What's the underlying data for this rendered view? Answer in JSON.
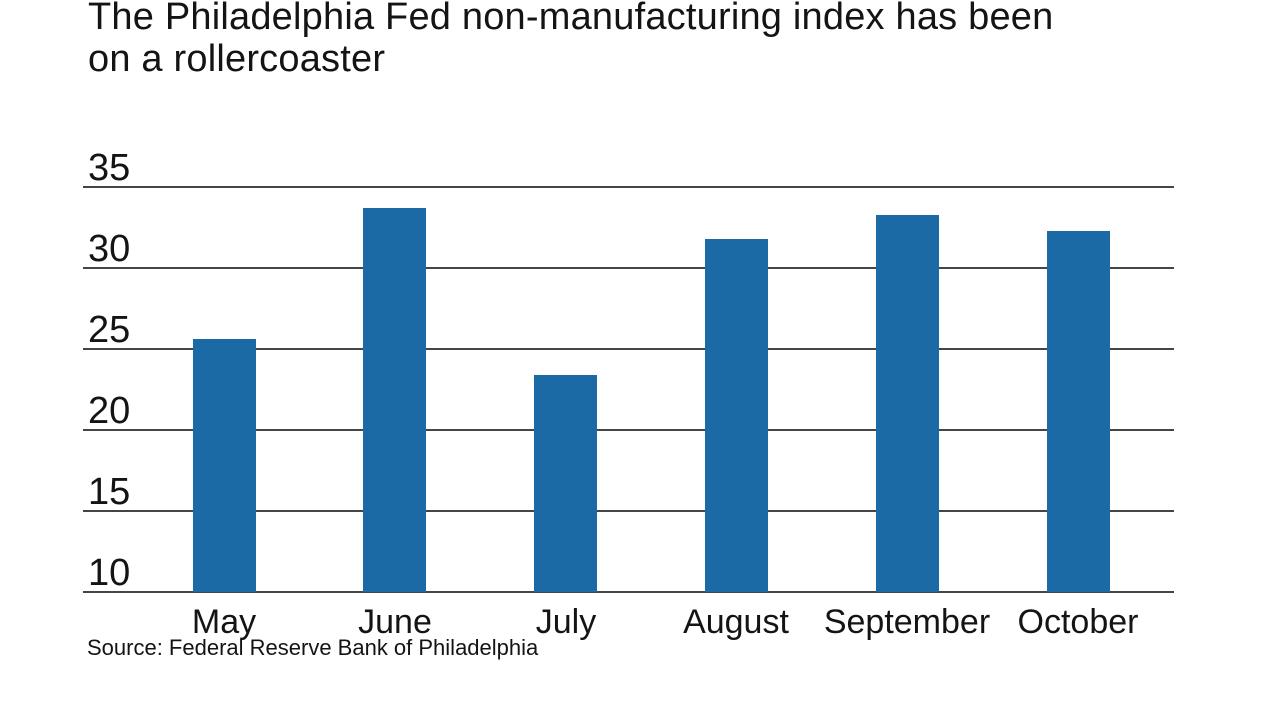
{
  "title_lines": [
    "The Philadelphia Fed non-manufacturing index has been",
    "on a rollercoaster"
  ],
  "source": "Source: Federal Reserve Bank of Philadelphia",
  "colors": {
    "bar": "#1c6aa5",
    "gridline": "#454545",
    "text": "#141414"
  },
  "chart_data": {
    "type": "bar",
    "title": "The Philadelphia Fed non-manufacturing index has been on a rollercoaster",
    "categories": [
      "May",
      "June",
      "July",
      "August",
      "September",
      "October"
    ],
    "values": [
      25.6,
      33.7,
      23.4,
      31.8,
      33.3,
      32.3
    ],
    "yticks": [
      35,
      30,
      25,
      20,
      15,
      10
    ],
    "ylim": [
      10,
      35.3
    ],
    "xlabel": "",
    "ylabel": "",
    "grid": true,
    "legend": false,
    "bar_color": "#1c6aa5",
    "source": "Source: Federal Reserve Bank of Philadelphia"
  }
}
